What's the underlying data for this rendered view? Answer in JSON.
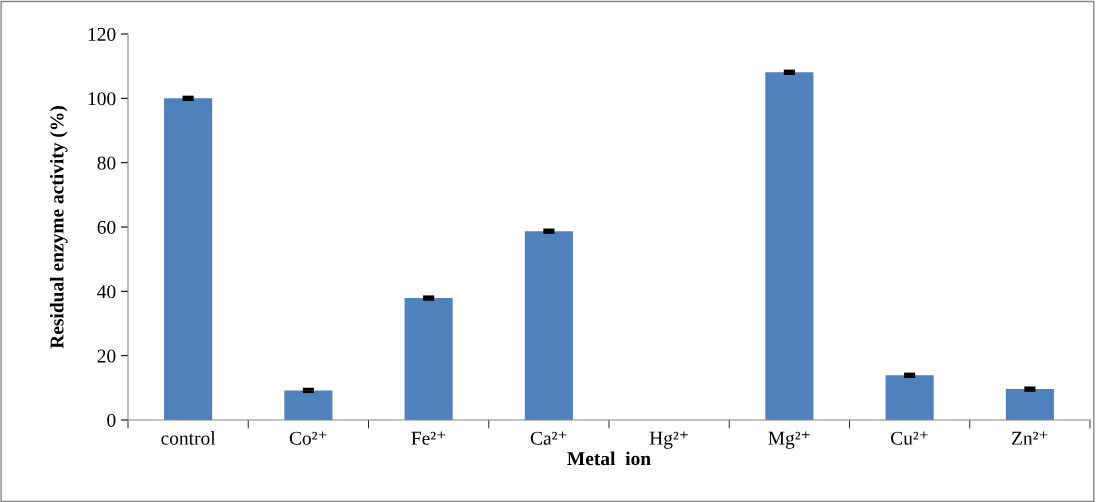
{
  "chart_data": {
    "type": "bar",
    "xlabel": "Metal  ion",
    "ylabel": "Residual enzyme activity (%)",
    "categories": [
      "control",
      "Co²⁺",
      "Fe²⁺",
      "Ca²⁺",
      "Hg²⁺",
      "Mg²⁺",
      "Cu²⁺",
      "Zn²⁺"
    ],
    "values": [
      100,
      9.2,
      37.9,
      58.7,
      0,
      108.1,
      13.9,
      9.6
    ],
    "errors": [
      0.4,
      0.4,
      0.4,
      0.4,
      null,
      0.4,
      0.4,
      0.4
    ],
    "color": "#4f81bd",
    "ylim": [
      0,
      120
    ],
    "yticks": [
      0,
      20,
      40,
      60,
      80,
      100,
      120
    ],
    "grid": false,
    "legend": false
  }
}
